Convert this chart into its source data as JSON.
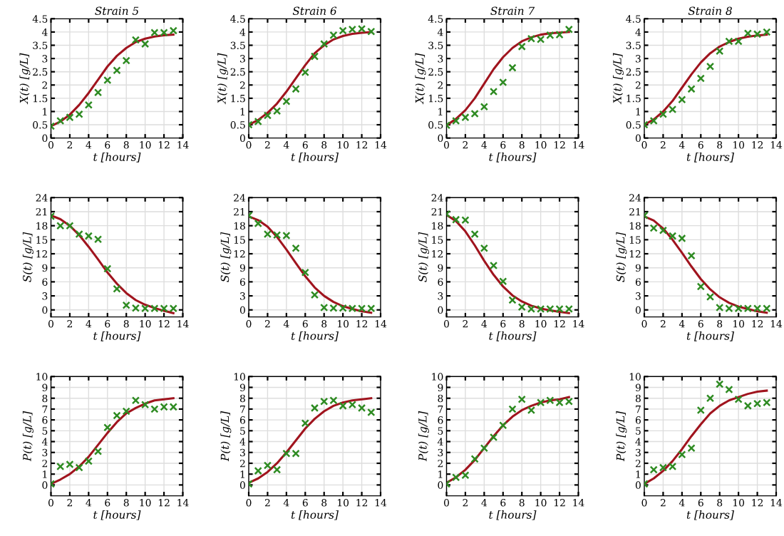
{
  "chart_data": [
    {
      "type": "scatter",
      "title": "Strain 5",
      "xlabel": "t [hours]",
      "ylabel": "X(t) [g/L]",
      "x": [
        0,
        1,
        2,
        3,
        4,
        5,
        6,
        7,
        8,
        9,
        10,
        11,
        12,
        13
      ],
      "xlim": [
        0,
        14
      ],
      "xticks": [
        0,
        2,
        4,
        6,
        8,
        10,
        12,
        14
      ],
      "ylim": [
        0,
        4.5
      ],
      "yticks": [
        0,
        0.5,
        1,
        1.5,
        2,
        2.5,
        3,
        3.5,
        4,
        4.5
      ],
      "grid": true,
      "series": [
        {
          "type": "scatter",
          "marker": "cross",
          "color": "#2e8b22",
          "values": [
            0.45,
            0.65,
            0.78,
            0.9,
            1.25,
            1.72,
            2.18,
            2.55,
            2.92,
            3.7,
            3.55,
            3.98,
            3.98,
            4.05
          ]
        },
        {
          "type": "line",
          "color": "#a0141e",
          "values": [
            0.45,
            0.62,
            0.88,
            1.25,
            1.7,
            2.2,
            2.7,
            3.1,
            3.4,
            3.62,
            3.75,
            3.83,
            3.88,
            3.9
          ]
        }
      ]
    },
    {
      "type": "scatter",
      "title": "Strain 6",
      "xlabel": "t [hours]",
      "ylabel": "X(t) [g/L]",
      "x": [
        0,
        1,
        2,
        3,
        4,
        5,
        6,
        7,
        8,
        9,
        10,
        11,
        12,
        13
      ],
      "xlim": [
        0,
        14
      ],
      "xticks": [
        0,
        2,
        4,
        6,
        8,
        10,
        12,
        14
      ],
      "ylim": [
        0,
        4.5
      ],
      "yticks": [
        0,
        0.5,
        1,
        1.5,
        2,
        2.5,
        3,
        3.5,
        4,
        4.5
      ],
      "grid": true,
      "series": [
        {
          "type": "scatter",
          "marker": "cross",
          "color": "#2e8b22",
          "values": [
            0.5,
            0.62,
            0.85,
            1.02,
            1.38,
            1.85,
            2.48,
            3.08,
            3.55,
            3.88,
            4.05,
            4.1,
            4.12,
            4.02
          ]
        },
        {
          "type": "line",
          "color": "#a0141e",
          "values": [
            0.5,
            0.68,
            0.95,
            1.3,
            1.75,
            2.25,
            2.75,
            3.2,
            3.5,
            3.72,
            3.85,
            3.93,
            3.97,
            4.0
          ]
        }
      ]
    },
    {
      "type": "scatter",
      "title": "Strain 7",
      "xlabel": "t [hours]",
      "ylabel": "X(t) [g/L]",
      "x": [
        0,
        1,
        2,
        3,
        4,
        5,
        6,
        7,
        8,
        9,
        10,
        11,
        12,
        13
      ],
      "xlim": [
        0,
        14
      ],
      "xticks": [
        0,
        2,
        4,
        6,
        8,
        10,
        12,
        14
      ],
      "ylim": [
        0,
        4.5
      ],
      "yticks": [
        0,
        0.5,
        1,
        1.5,
        2,
        2.5,
        3,
        3.5,
        4,
        4.5
      ],
      "grid": true,
      "series": [
        {
          "type": "scatter",
          "marker": "cross",
          "color": "#2e8b22",
          "values": [
            0.48,
            0.65,
            0.78,
            0.92,
            1.18,
            1.75,
            2.1,
            2.65,
            3.45,
            3.75,
            3.72,
            3.88,
            3.9,
            4.1
          ]
        },
        {
          "type": "line",
          "color": "#a0141e",
          "values": [
            0.48,
            0.72,
            1.05,
            1.5,
            2.05,
            2.6,
            3.05,
            3.4,
            3.65,
            3.8,
            3.9,
            3.95,
            3.98,
            4.0
          ]
        }
      ]
    },
    {
      "type": "scatter",
      "title": "Strain 8",
      "xlabel": "t [hours]",
      "ylabel": "X(t) [g/L]",
      "x": [
        0,
        1,
        2,
        3,
        4,
        5,
        6,
        7,
        8,
        9,
        10,
        11,
        12,
        13
      ],
      "xlim": [
        0,
        14
      ],
      "xticks": [
        0,
        2,
        4,
        6,
        8,
        10,
        12,
        14
      ],
      "ylim": [
        0,
        4.5
      ],
      "yticks": [
        0,
        0.5,
        1,
        1.5,
        2,
        2.5,
        3,
        3.5,
        4,
        4.5
      ],
      "grid": true,
      "series": [
        {
          "type": "scatter",
          "marker": "cross",
          "color": "#2e8b22",
          "values": [
            0.5,
            0.65,
            0.9,
            1.08,
            1.45,
            1.85,
            2.25,
            2.7,
            3.28,
            3.65,
            3.65,
            3.95,
            3.92,
            4.0
          ]
        },
        {
          "type": "line",
          "color": "#a0141e",
          "values": [
            0.5,
            0.7,
            1.0,
            1.4,
            1.9,
            2.4,
            2.85,
            3.2,
            3.45,
            3.62,
            3.75,
            3.82,
            3.87,
            3.9
          ]
        }
      ]
    },
    {
      "type": "scatter",
      "xlabel": "t [hours]",
      "ylabel": "S(t) [g/L]",
      "x": [
        0,
        1,
        2,
        3,
        4,
        5,
        6,
        7,
        8,
        9,
        10,
        11,
        12,
        13
      ],
      "xlim": [
        0,
        14
      ],
      "xticks": [
        0,
        2,
        4,
        6,
        8,
        10,
        12,
        14
      ],
      "ylim": [
        -1.5,
        24
      ],
      "yticks": [
        0,
        3,
        6,
        9,
        12,
        15,
        18,
        21,
        24
      ],
      "grid": true,
      "series": [
        {
          "type": "scatter",
          "marker": "cross",
          "color": "#2e8b22",
          "values": [
            20,
            18,
            18,
            16.2,
            15.8,
            15.1,
            8.8,
            4.5,
            1,
            0.4,
            0.3,
            0.3,
            0.3,
            0.3
          ]
        },
        {
          "type": "line",
          "color": "#a0141e",
          "values": [
            20.2,
            19.4,
            18,
            16,
            13.5,
            10.8,
            8,
            5.6,
            3.6,
            2.1,
            1.1,
            0.4,
            -0.2,
            -0.7
          ]
        }
      ]
    },
    {
      "type": "scatter",
      "xlabel": "t [hours]",
      "ylabel": "S(t) [g/L]",
      "x": [
        0,
        1,
        2,
        3,
        4,
        5,
        6,
        7,
        8,
        9,
        10,
        11,
        12,
        13
      ],
      "xlim": [
        0,
        14
      ],
      "xticks": [
        0,
        2,
        4,
        6,
        8,
        10,
        12,
        14
      ],
      "ylim": [
        -1.5,
        24
      ],
      "yticks": [
        0,
        3,
        6,
        9,
        12,
        15,
        18,
        21,
        24
      ],
      "grid": true,
      "series": [
        {
          "type": "scatter",
          "marker": "cross",
          "color": "#2e8b22",
          "values": [
            20.2,
            18.5,
            16.2,
            16,
            15.9,
            13.2,
            8,
            3.2,
            0.5,
            0.4,
            0.4,
            0.3,
            0.3,
            0.3
          ]
        },
        {
          "type": "line",
          "color": "#a0141e",
          "values": [
            20,
            19.2,
            17.8,
            15.6,
            12.9,
            10,
            7.2,
            4.8,
            3,
            1.7,
            0.8,
            0.2,
            -0.3,
            -0.6
          ]
        }
      ]
    },
    {
      "type": "scatter",
      "xlabel": "t [hours]",
      "ylabel": "S(t) [g/L]",
      "x": [
        0,
        1,
        2,
        3,
        4,
        5,
        6,
        7,
        8,
        9,
        10,
        11,
        12,
        13
      ],
      "xlim": [
        0,
        14
      ],
      "xticks": [
        0,
        2,
        4,
        6,
        8,
        10,
        12,
        14
      ],
      "ylim": [
        -1.5,
        24
      ],
      "yticks": [
        0,
        3,
        6,
        9,
        12,
        15,
        18,
        21,
        24
      ],
      "grid": true,
      "series": [
        {
          "type": "scatter",
          "marker": "cross",
          "color": "#2e8b22",
          "values": [
            20.5,
            19.3,
            19.2,
            16.2,
            13.2,
            9.5,
            6.1,
            2.1,
            0.6,
            0.2,
            0.2,
            0.2,
            0.2,
            0.2
          ]
        },
        {
          "type": "line",
          "color": "#a0141e",
          "values": [
            20.3,
            19,
            16.8,
            13.8,
            10.5,
            7.5,
            5,
            3.1,
            1.8,
            0.9,
            0.3,
            -0.1,
            -0.4,
            -0.7
          ]
        }
      ]
    },
    {
      "type": "scatter",
      "xlabel": "t [hours]",
      "ylabel": "S(t) [g/L]",
      "x": [
        0,
        1,
        2,
        3,
        4,
        5,
        6,
        7,
        8,
        9,
        10,
        11,
        12,
        13
      ],
      "xlim": [
        0,
        14
      ],
      "xticks": [
        0,
        2,
        4,
        6,
        8,
        10,
        12,
        14
      ],
      "ylim": [
        -1.5,
        24
      ],
      "yticks": [
        0,
        3,
        6,
        9,
        12,
        15,
        18,
        21,
        24
      ],
      "grid": true,
      "series": [
        {
          "type": "scatter",
          "marker": "cross",
          "color": "#2e8b22",
          "values": [
            20.2,
            17.5,
            17,
            15.8,
            15.3,
            11.6,
            5,
            2.8,
            0.5,
            0.3,
            0.3,
            0.3,
            0.3,
            0.3
          ]
        },
        {
          "type": "line",
          "color": "#a0141e",
          "values": [
            20,
            19.1,
            17.4,
            15,
            12.2,
            9.3,
            6.6,
            4.4,
            2.7,
            1.5,
            0.7,
            0.2,
            -0.3,
            -0.6
          ]
        }
      ]
    },
    {
      "type": "scatter",
      "xlabel": "t [hours]",
      "ylabel": "P(t) [g/L]",
      "x": [
        0,
        1,
        2,
        3,
        4,
        5,
        6,
        7,
        8,
        9,
        10,
        11,
        12,
        13
      ],
      "xlim": [
        0,
        14
      ],
      "xticks": [
        0,
        2,
        4,
        6,
        8,
        10,
        12,
        14
      ],
      "ylim": [
        -1,
        10
      ],
      "yticks": [
        0,
        1,
        2,
        3,
        4,
        5,
        6,
        7,
        8,
        9,
        10
      ],
      "grid": true,
      "series": [
        {
          "type": "scatter",
          "marker": "cross",
          "color": "#2e8b22",
          "values": [
            0.1,
            1.7,
            1.9,
            1.6,
            2.2,
            3.1,
            5.3,
            6.4,
            6.8,
            7.8,
            7.4,
            7,
            7.2,
            7.2
          ]
        },
        {
          "type": "line",
          "color": "#a0141e",
          "values": [
            0.1,
            0.5,
            1.0,
            1.7,
            2.6,
            3.7,
            4.8,
            5.8,
            6.6,
            7.1,
            7.5,
            7.8,
            7.9,
            8.0
          ]
        }
      ]
    },
    {
      "type": "scatter",
      "xlabel": "t [hours]",
      "ylabel": "P(t) [g/L]",
      "x": [
        0,
        1,
        2,
        3,
        4,
        5,
        6,
        7,
        8,
        9,
        10,
        11,
        12,
        13
      ],
      "xlim": [
        0,
        14
      ],
      "xticks": [
        0,
        2,
        4,
        6,
        8,
        10,
        12,
        14
      ],
      "ylim": [
        -1,
        10
      ],
      "yticks": [
        0,
        1,
        2,
        3,
        4,
        5,
        6,
        7,
        8,
        9,
        10
      ],
      "grid": true,
      "series": [
        {
          "type": "scatter",
          "marker": "cross",
          "color": "#2e8b22",
          "values": [
            0.1,
            1.3,
            1.8,
            1.4,
            2.9,
            2.9,
            5.7,
            7.1,
            7.7,
            7.8,
            7.3,
            7.4,
            7.1,
            6.7
          ]
        },
        {
          "type": "line",
          "color": "#a0141e",
          "values": [
            0.2,
            0.6,
            1.2,
            2.0,
            3.0,
            4.1,
            5.2,
            6.1,
            6.8,
            7.3,
            7.6,
            7.8,
            7.9,
            8.0
          ]
        }
      ]
    },
    {
      "type": "scatter",
      "xlabel": "t [hours]",
      "ylabel": "P(t) [g/L]",
      "x": [
        0,
        1,
        2,
        3,
        4,
        5,
        6,
        7,
        8,
        9,
        10,
        11,
        12,
        13
      ],
      "xlim": [
        0,
        14
      ],
      "xticks": [
        0,
        2,
        4,
        6,
        8,
        10,
        12,
        14
      ],
      "ylim": [
        -1,
        10
      ],
      "yticks": [
        0,
        1,
        2,
        3,
        4,
        5,
        6,
        7,
        8,
        9,
        10
      ],
      "grid": true,
      "series": [
        {
          "type": "scatter",
          "marker": "cross",
          "color": "#2e8b22",
          "values": [
            0.1,
            0.7,
            0.9,
            2.4,
            3.4,
            4.4,
            5.5,
            7.0,
            7.9,
            6.9,
            7.6,
            7.8,
            7.6,
            7.7
          ]
        },
        {
          "type": "line",
          "color": "#a0141e",
          "values": [
            0.2,
            0.7,
            1.4,
            2.3,
            3.4,
            4.5,
            5.5,
            6.3,
            6.9,
            7.3,
            7.6,
            7.8,
            7.9,
            8.1
          ]
        }
      ]
    },
    {
      "type": "scatter",
      "xlabel": "t [hours]",
      "ylabel": "P(t) [g/L]",
      "x": [
        0,
        1,
        2,
        3,
        4,
        5,
        6,
        7,
        8,
        9,
        10,
        11,
        12,
        13
      ],
      "xlim": [
        0,
        14
      ],
      "xticks": [
        0,
        2,
        4,
        6,
        8,
        10,
        12,
        14
      ],
      "ylim": [
        -1,
        10
      ],
      "yticks": [
        0,
        1,
        2,
        3,
        4,
        5,
        6,
        7,
        8,
        9,
        10
      ],
      "grid": true,
      "series": [
        {
          "type": "scatter",
          "marker": "cross",
          "color": "#2e8b22",
          "values": [
            0.1,
            1.4,
            1.6,
            1.7,
            2.8,
            3.4,
            6.9,
            8.0,
            9.3,
            8.8,
            7.9,
            7.3,
            7.5,
            7.6
          ]
        },
        {
          "type": "line",
          "color": "#a0141e",
          "values": [
            0.1,
            0.6,
            1.3,
            2.2,
            3.3,
            4.5,
            5.6,
            6.6,
            7.3,
            7.8,
            8.1,
            8.4,
            8.6,
            8.7
          ]
        }
      ]
    }
  ]
}
